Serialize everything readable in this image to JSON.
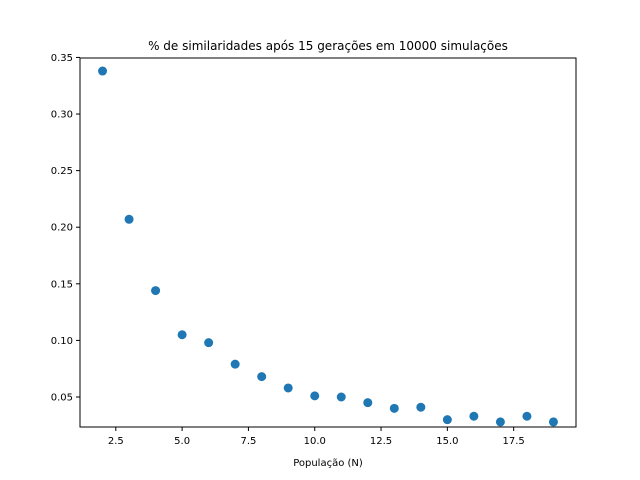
{
  "chart_data": {
    "type": "scatter",
    "title": "% de similaridades após 15 gerações em 10000 simulações",
    "xlabel": "População (N)",
    "ylabel": "",
    "xlim": [
      1.15,
      19.85
    ],
    "ylim": [
      0.0235,
      0.3495
    ],
    "xticks": [
      2.5,
      5.0,
      7.5,
      10.0,
      12.5,
      15.0,
      17.5
    ],
    "xtick_labels": [
      "2.5",
      "5.0",
      "7.5",
      "10.0",
      "12.5",
      "15.0",
      "17.5"
    ],
    "yticks": [
      0.05,
      0.1,
      0.15,
      0.2,
      0.25,
      0.3,
      0.35
    ],
    "ytick_labels": [
      "0.05",
      "0.10",
      "0.15",
      "0.20",
      "0.25",
      "0.30",
      "0.35"
    ],
    "grid": false,
    "series": [
      {
        "color": "#1f77b4",
        "x": [
          2,
          3,
          4,
          5,
          6,
          7,
          8,
          9,
          10,
          11,
          12,
          13,
          14,
          15,
          16,
          17,
          18,
          19
        ],
        "y": [
          0.338,
          0.207,
          0.144,
          0.105,
          0.098,
          0.079,
          0.068,
          0.058,
          0.051,
          0.05,
          0.045,
          0.04,
          0.041,
          0.03,
          0.033,
          0.028,
          0.033,
          0.028
        ]
      }
    ]
  }
}
